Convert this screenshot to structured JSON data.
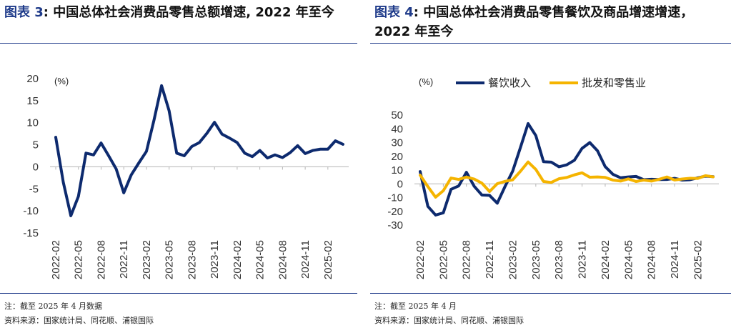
{
  "left": {
    "title_prefix": "图表 3",
    "title_rest": ": 中国总体社会消费品零售总额增速, 2022 年至今",
    "note": "注：截至 2025 年 4 月数据",
    "source": "资料来源：国家统计局、同花顺、浦银国际"
  },
  "right": {
    "title_prefix": "图表 4",
    "title_rest": ": 中国总体社会消费品零售餐饮及商品增速增速，2022 年至今",
    "note": "注：截至 2025 年 4 月",
    "source": "资料来源：国家统计局、同花顺、浦银国际"
  },
  "chart_data": [
    {
      "type": "line",
      "unit_label": "(%)",
      "ylim": [
        -15,
        20
      ],
      "yticks": [
        20,
        15,
        10,
        5,
        0,
        -5,
        -10,
        -15
      ],
      "xticks": [
        "2022-02",
        "2022-05",
        "2022-08",
        "2022-11",
        "2023-02",
        "2023-05",
        "2023-08",
        "2023-11",
        "2024-02",
        "2024-05",
        "2024-08",
        "2024-11",
        "2025-02"
      ],
      "x": [
        "2022-02",
        "2022-03",
        "2022-04",
        "2022-05",
        "2022-06",
        "2022-07",
        "2022-08",
        "2022-09",
        "2022-10",
        "2022-11",
        "2022-12",
        "2023-01",
        "2023-02",
        "2023-03",
        "2023-04",
        "2023-05",
        "2023-06",
        "2023-07",
        "2023-08",
        "2023-09",
        "2023-10",
        "2023-11",
        "2023-12",
        "2024-01",
        "2024-02",
        "2024-03",
        "2024-04",
        "2024-05",
        "2024-06",
        "2024-07",
        "2024-08",
        "2024-09",
        "2024-10",
        "2024-11",
        "2024-12",
        "2025-01",
        "2025-02",
        "2025-03",
        "2025-04"
      ],
      "series": [
        {
          "color": "#0d2a6e",
          "values": [
            6.7,
            -3.5,
            -11.1,
            -6.7,
            3.1,
            2.7,
            5.4,
            2.5,
            -0.5,
            -5.9,
            -1.8,
            0.9,
            3.5,
            10.6,
            18.4,
            12.7,
            3.1,
            2.5,
            4.6,
            5.5,
            7.6,
            10.1,
            7.4,
            6.5,
            5.5,
            3.1,
            2.3,
            3.7,
            2.0,
            2.7,
            2.1,
            3.2,
            4.8,
            3.0,
            3.7,
            4.0,
            4.0,
            5.9,
            5.1
          ]
        }
      ]
    },
    {
      "type": "line",
      "unit_label": "(%)",
      "ylim": [
        -30,
        50
      ],
      "yticks": [
        50,
        40,
        30,
        20,
        10,
        0,
        -10,
        -20,
        -30
      ],
      "xticks": [
        "2022-02",
        "2022-05",
        "2022-08",
        "2022-11",
        "2023-02",
        "2023-05",
        "2023-08",
        "2023-11",
        "2024-02",
        "2024-05",
        "2024-08",
        "2024-11",
        "2025-02"
      ],
      "x": [
        "2022-02",
        "2022-03",
        "2022-04",
        "2022-05",
        "2022-06",
        "2022-07",
        "2022-08",
        "2022-09",
        "2022-10",
        "2022-11",
        "2022-12",
        "2023-01",
        "2023-02",
        "2023-03",
        "2023-04",
        "2023-05",
        "2023-06",
        "2023-07",
        "2023-08",
        "2023-09",
        "2023-10",
        "2023-11",
        "2023-12",
        "2024-01",
        "2024-02",
        "2024-03",
        "2024-04",
        "2024-05",
        "2024-06",
        "2024-07",
        "2024-08",
        "2024-09",
        "2024-10",
        "2024-11",
        "2024-12",
        "2025-01",
        "2025-02",
        "2025-03",
        "2025-04"
      ],
      "series": [
        {
          "name": "餐饮收入",
          "color": "#0d2a6e",
          "values": [
            8.9,
            -16.4,
            -22.7,
            -21.1,
            -4.0,
            -1.5,
            8.4,
            -1.7,
            -8.1,
            -8.4,
            -14.1,
            -2.0,
            9.2,
            26.3,
            43.8,
            35.1,
            16.1,
            15.8,
            12.4,
            13.8,
            17.1,
            25.8,
            30.0,
            24.0,
            12.5,
            6.9,
            4.4,
            5.0,
            5.4,
            3.0,
            3.3,
            3.1,
            3.2,
            4.0,
            2.7,
            3.0,
            4.3,
            5.6,
            5.2
          ]
        },
        {
          "name": "批发和零售业",
          "color": "#f5b400",
          "values": [
            6.3,
            -2.0,
            -9.7,
            -5.0,
            4.2,
            3.2,
            4.9,
            3.5,
            0.5,
            -5.6,
            0.1,
            1.8,
            2.9,
            9.1,
            15.9,
            10.5,
            1.7,
            1.0,
            3.7,
            4.6,
            6.5,
            8.0,
            4.8,
            5.0,
            4.7,
            2.7,
            2.0,
            3.6,
            1.7,
            2.7,
            2.0,
            3.3,
            5.0,
            2.8,
            3.5,
            4.0,
            3.9,
            5.9,
            5.1
          ]
        }
      ]
    }
  ]
}
